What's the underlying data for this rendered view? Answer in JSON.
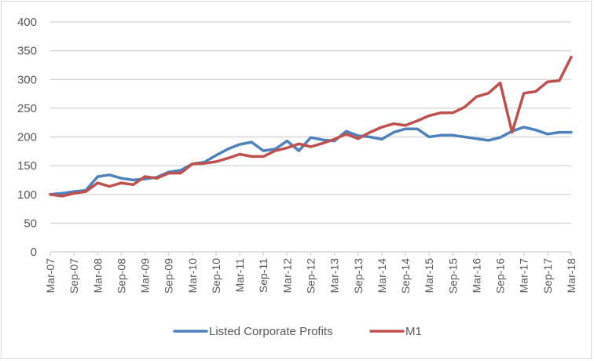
{
  "chart_data": {
    "type": "line",
    "title": "",
    "xlabel": "",
    "ylabel": "",
    "ylim": [
      0,
      400
    ],
    "yticks": [
      "0",
      "50",
      "100",
      "150",
      "200",
      "250",
      "300",
      "350",
      "400"
    ],
    "ytick_values": [
      0,
      50,
      100,
      150,
      200,
      250,
      300,
      350,
      400
    ],
    "grid": true,
    "legend_position": "bottom",
    "x": [
      "Mar-07",
      "Jun-07",
      "Sep-07",
      "Dec-07",
      "Mar-08",
      "Jun-08",
      "Sep-08",
      "Dec-08",
      "Mar-09",
      "Jun-09",
      "Sep-09",
      "Dec-09",
      "Mar-10",
      "Jun-10",
      "Sep-10",
      "Dec-10",
      "Mar-11",
      "Jun-11",
      "Sep-11",
      "Dec-11",
      "Mar-12",
      "Jun-12",
      "Sep-12",
      "Dec-12",
      "Mar-13",
      "Jun-13",
      "Sep-13",
      "Dec-13",
      "Mar-14",
      "Jun-14",
      "Sep-14",
      "Dec-14",
      "Mar-15",
      "Jun-15",
      "Sep-15",
      "Dec-15",
      "Mar-16",
      "Jun-16",
      "Sep-16",
      "Dec-16",
      "Mar-17",
      "Jun-17",
      "Sep-17",
      "Dec-17",
      "Mar-18"
    ],
    "xtick_labels": [
      "Mar-07",
      "Sep-07",
      "Mar-08",
      "Sep-08",
      "Mar-09",
      "Sep-09",
      "Mar-10",
      "Sep-10",
      "Mar-11",
      "Sep-11",
      "Mar-12",
      "Sep-12",
      "Mar-13",
      "Sep-13",
      "Mar-14",
      "Sep-14",
      "Mar-15",
      "Sep-15",
      "Mar-16",
      "Sep-16",
      "Mar-17",
      "Sep-17",
      "Mar-18"
    ],
    "series": [
      {
        "name": "Listed Corporate Profits",
        "color": "#4f81bd",
        "values": [
          100,
          102,
          105,
          107,
          131,
          134,
          128,
          125,
          127,
          130,
          139,
          142,
          153,
          156,
          168,
          179,
          187,
          191,
          176,
          179,
          193,
          176,
          199,
          195,
          193,
          210,
          202,
          200,
          196,
          208,
          214,
          214,
          200,
          203,
          203,
          200,
          197,
          194,
          199,
          210,
          217,
          212,
          205,
          208,
          208
        ]
      },
      {
        "name": "M1",
        "color": "#c0504d",
        "values": [
          100,
          97,
          102,
          105,
          120,
          114,
          120,
          117,
          131,
          128,
          137,
          137,
          153,
          154,
          157,
          163,
          170,
          166,
          166,
          176,
          181,
          188,
          183,
          189,
          196,
          205,
          197,
          208,
          217,
          223,
          220,
          228,
          237,
          242,
          242,
          252,
          270,
          276,
          294,
          208,
          276,
          279,
          296,
          298,
          339
        ]
      }
    ]
  }
}
